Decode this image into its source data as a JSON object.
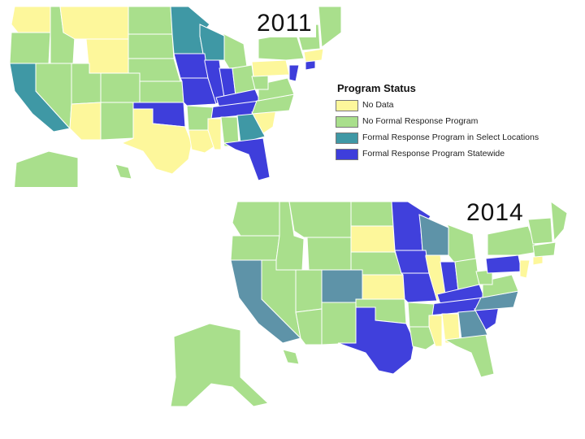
{
  "colors": {
    "no_data": "#fdf79b",
    "no_program": "#a9df8c",
    "select_locations": "#3f98a5",
    "statewide": "#3e3edb",
    "teal_2014": "#5e93a8",
    "blue_2014": "#4040dc"
  },
  "maps": [
    {
      "year": "2011"
    },
    {
      "year": "2014"
    }
  ],
  "legend": {
    "title": "Program Status",
    "items": [
      {
        "label": "No Data",
        "status": "no_data"
      },
      {
        "label": "No Formal Response Program",
        "status": "no_program"
      },
      {
        "label": "Formal Response Program in Select Locations",
        "status": "select_locations"
      },
      {
        "label": "Formal Response Program Statewide",
        "status": "statewide"
      }
    ]
  }
}
